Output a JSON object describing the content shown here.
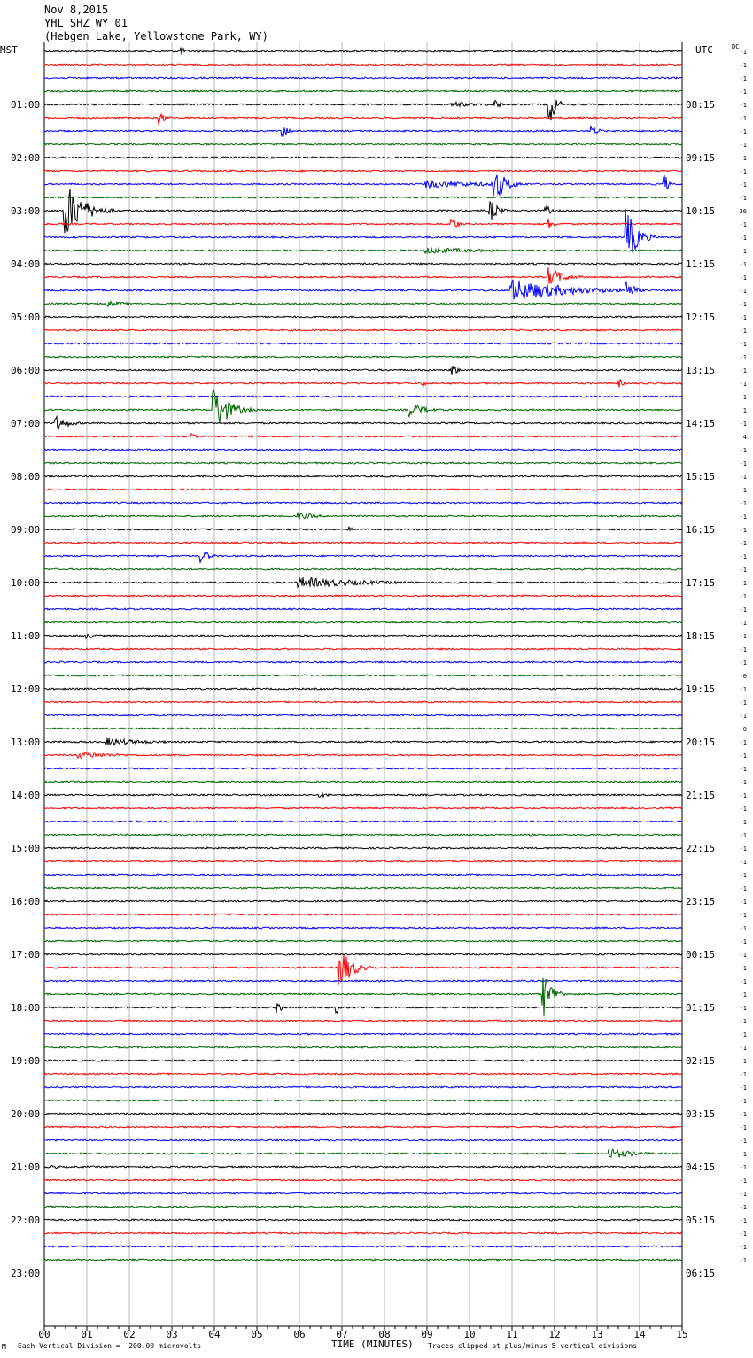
{
  "header": {
    "date": "Nov 8,2015",
    "station": "YHL SHZ WY 01",
    "location": "(Hebgen Lake, Yellowstone Park, WY)"
  },
  "left_timezone": "MST",
  "right_timezone": "UTC",
  "dc_label": "DC",
  "footer": {
    "scale": "Each Vertical Division =  200.00 microvolts",
    "clip": "Traces clipped at plus/minus 5 vertical divisions",
    "mark": "M"
  },
  "colors": {
    "trace_cycle": [
      "#000000",
      "#ff0000",
      "#0000ff",
      "#006400"
    ],
    "grid": "#888888"
  },
  "chart_data": {
    "type": "line",
    "title": "",
    "xlabel": "TIME (MINUTES)",
    "ylabel": "",
    "xlim": [
      0,
      15
    ],
    "x_ticks": [
      "00",
      "01",
      "02",
      "03",
      "04",
      "05",
      "06",
      "07",
      "08",
      "09",
      "10",
      "11",
      "12",
      "13",
      "14",
      "15"
    ],
    "trace_minutes": 15,
    "trace_count": 92,
    "vertical_grid": true,
    "left_hour_labels": [
      "01:00",
      "02:00",
      "03:00",
      "04:00",
      "05:00",
      "06:00",
      "07:00",
      "08:00",
      "09:00",
      "10:00",
      "11:00",
      "12:00",
      "13:00",
      "14:00",
      "15:00",
      "16:00",
      "17:00",
      "18:00",
      "19:00",
      "20:00",
      "21:00",
      "22:00",
      "23:00"
    ],
    "right_hour_labels": [
      "08:15",
      "09:15",
      "10:15",
      "11:15",
      "12:15",
      "13:15",
      "14:15",
      "15:15",
      "16:15",
      "17:15",
      "18:15",
      "19:15",
      "20:15",
      "21:15",
      "22:15",
      "23:15",
      "00:15",
      "01:15",
      "02:15",
      "03:15",
      "04:15",
      "05:15",
      "06:15"
    ],
    "dc_offsets": [
      "-1",
      "-1",
      "-1",
      "-1",
      "-1",
      "-1",
      "-1",
      "-1",
      "-1",
      "-1",
      "-1",
      "-1",
      "26",
      "-1",
      "-1",
      "-1",
      "-1",
      "-1",
      "-1",
      "-1",
      "-1",
      "-1",
      "-1",
      "-1",
      "-1",
      "-1",
      "-1",
      "1",
      "-1",
      "4",
      "-1",
      "-1",
      "-1",
      "-1",
      "-1",
      "-1",
      "-1",
      "-1",
      "-1",
      "-1",
      "-1",
      "-1",
      "-1",
      "-1",
      "-1",
      "-1",
      "-1",
      "-0",
      "-1",
      "-1",
      "-1",
      "-0",
      "-1",
      "-1",
      "-1",
      "-1",
      "-1",
      "-1",
      "-1",
      "-1",
      "-1",
      "-1",
      "-1",
      "-1",
      "-1",
      "-1",
      "-1",
      "-1",
      "-1",
      "-1",
      "-1",
      "-1",
      "-1",
      "-1",
      "-1",
      "-1",
      "-1",
      "-1",
      "-1",
      "-1",
      "-1",
      "-1",
      "-1",
      "-1",
      "-1",
      "-1",
      "-1",
      "-1",
      "-1",
      "-1",
      "-1",
      "-1"
    ],
    "events": [
      {
        "trace": 0,
        "minute": 3.2,
        "amp": 3,
        "dur": 0.3
      },
      {
        "trace": 4,
        "minute": 11.9,
        "amp": 10,
        "dur": 0.4
      },
      {
        "trace": 4,
        "minute": 10.6,
        "amp": 3,
        "dur": 0.4
      },
      {
        "trace": 4,
        "minute": 9.6,
        "amp": 1.5,
        "dur": 2.2
      },
      {
        "trace": 5,
        "minute": 2.7,
        "amp": 4,
        "dur": 0.4
      },
      {
        "trace": 6,
        "minute": 5.6,
        "amp": 4,
        "dur": 0.4
      },
      {
        "trace": 6,
        "minute": 12.9,
        "amp": 3,
        "dur": 0.4
      },
      {
        "trace": 10,
        "minute": 10.6,
        "amp": 9,
        "dur": 0.8
      },
      {
        "trace": 10,
        "minute": 14.6,
        "amp": 6,
        "dur": 0.2
      },
      {
        "trace": 10,
        "minute": 9.0,
        "amp": 2,
        "dur": 5.0
      },
      {
        "trace": 12,
        "minute": 0.5,
        "amp": 15,
        "dur": 1.2
      },
      {
        "trace": 12,
        "minute": 10.5,
        "amp": 6,
        "dur": 0.5
      },
      {
        "trace": 12,
        "minute": 11.8,
        "amp": 3,
        "dur": 0.4
      },
      {
        "trace": 13,
        "minute": 9.6,
        "amp": 4,
        "dur": 0.4
      },
      {
        "trace": 13,
        "minute": 11.9,
        "amp": 3,
        "dur": 0.3
      },
      {
        "trace": 14,
        "minute": 13.7,
        "amp": 15,
        "dur": 0.7
      },
      {
        "trace": 15,
        "minute": 9.0,
        "amp": 2,
        "dur": 3.5
      },
      {
        "trace": 17,
        "minute": 11.9,
        "amp": 5,
        "dur": 1.0
      },
      {
        "trace": 18,
        "minute": 11.0,
        "amp": 6,
        "dur": 4.0
      },
      {
        "trace": 18,
        "minute": 13.7,
        "amp": 6,
        "dur": 0.5
      },
      {
        "trace": 19,
        "minute": 1.5,
        "amp": 1.5,
        "dur": 1.5
      },
      {
        "trace": 24,
        "minute": 9.6,
        "amp": 4,
        "dur": 0.3
      },
      {
        "trace": 25,
        "minute": 8.9,
        "amp": 2,
        "dur": 0.3
      },
      {
        "trace": 25,
        "minute": 13.5,
        "amp": 3,
        "dur": 0.3
      },
      {
        "trace": 27,
        "minute": 4.0,
        "amp": 12,
        "dur": 1.0
      },
      {
        "trace": 27,
        "minute": 8.6,
        "amp": 4,
        "dur": 1.0
      },
      {
        "trace": 28,
        "minute": 0.3,
        "amp": 4,
        "dur": 0.8
      },
      {
        "trace": 29,
        "minute": 3.5,
        "amp": 2,
        "dur": 0.3
      },
      {
        "trace": 35,
        "minute": 6.0,
        "amp": 2,
        "dur": 1.2
      },
      {
        "trace": 36,
        "minute": 7.2,
        "amp": 1.5,
        "dur": 0.3
      },
      {
        "trace": 38,
        "minute": 3.7,
        "amp": 4,
        "dur": 0.5
      },
      {
        "trace": 40,
        "minute": 6.0,
        "amp": 3,
        "dur": 4.5
      },
      {
        "trace": 44,
        "minute": 1.0,
        "amp": 1.5,
        "dur": 0.8
      },
      {
        "trace": 52,
        "minute": 1.5,
        "amp": 2,
        "dur": 3.0
      },
      {
        "trace": 53,
        "minute": 0.8,
        "amp": 2,
        "dur": 2.5
      },
      {
        "trace": 56,
        "minute": 6.5,
        "amp": 1.2,
        "dur": 1.0
      },
      {
        "trace": 69,
        "minute": 6.95,
        "amp": 12,
        "dur": 0.8
      },
      {
        "trace": 71,
        "minute": 11.75,
        "amp": 12,
        "dur": 0.6
      },
      {
        "trace": 72,
        "minute": 5.5,
        "amp": 3,
        "dur": 0.3
      },
      {
        "trace": 72,
        "minute": 6.9,
        "amp": 3,
        "dur": 0.3
      },
      {
        "trace": 83,
        "minute": 13.3,
        "amp": 3,
        "dur": 1.7
      },
      {
        "trace": 84,
        "minute": 0.2,
        "amp": 1,
        "dur": 0.8
      }
    ]
  }
}
